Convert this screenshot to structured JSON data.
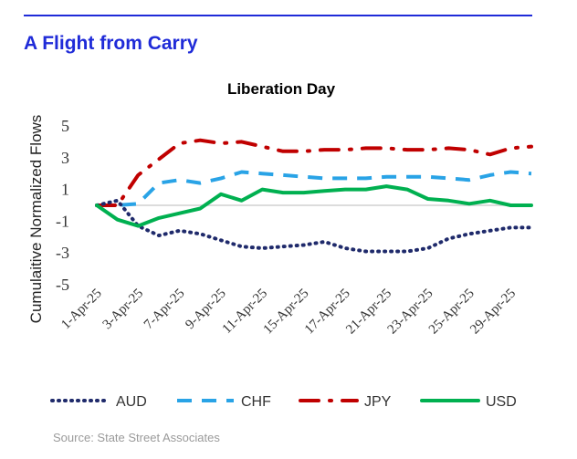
{
  "header": {
    "title": "A Flight from Carry",
    "accent_color": "#1f2bd8"
  },
  "footer": {
    "source": "Source: State Street Associates"
  },
  "chart_data": {
    "type": "line",
    "title": "Liberation Day",
    "ylabel": "Cumulaitive Normalized Flows",
    "xlabel": "",
    "ylim": [
      -5,
      5
    ],
    "yticks": [
      "5",
      "3",
      "1",
      "-1",
      "-3",
      "-5"
    ],
    "ytick_values": [
      5,
      3,
      1,
      -1,
      -3,
      -5
    ],
    "x": [
      "1-Apr-25",
      "2-Apr-25",
      "3-Apr-25",
      "4-Apr-25",
      "7-Apr-25",
      "8-Apr-25",
      "9-Apr-25",
      "10-Apr-25",
      "11-Apr-25",
      "14-Apr-25",
      "15-Apr-25",
      "16-Apr-25",
      "17-Apr-25",
      "18-Apr-25",
      "21-Apr-25",
      "22-Apr-25",
      "23-Apr-25",
      "24-Apr-25",
      "25-Apr-25",
      "28-Apr-25",
      "29-Apr-25",
      "30-Apr-25"
    ],
    "xtick_labels": [
      "1-Apr-25",
      "3-Apr-25",
      "7-Apr-25",
      "9-Apr-25",
      "11-Apr-25",
      "15-Apr-25",
      "17-Apr-25",
      "21-Apr-25",
      "23-Apr-25",
      "25-Apr-25",
      "29-Apr-25"
    ],
    "legend_position": "bottom",
    "grid": false,
    "series": [
      {
        "name": "AUD",
        "color": "#1f2a6b",
        "style": "dotted",
        "values": [
          0.0,
          0.3,
          -1.3,
          -1.9,
          -1.6,
          -1.8,
          -2.2,
          -2.6,
          -2.7,
          -2.6,
          -2.5,
          -2.3,
          -2.7,
          -2.9,
          -2.9,
          -2.9,
          -2.7,
          -2.1,
          -1.8,
          -1.6,
          -1.4,
          -1.4
        ]
      },
      {
        "name": "CHF",
        "color": "#29a3e6",
        "style": "dashed",
        "values": [
          0.0,
          0.0,
          0.1,
          1.4,
          1.6,
          1.4,
          1.7,
          2.1,
          2.0,
          1.9,
          1.8,
          1.7,
          1.7,
          1.7,
          1.8,
          1.8,
          1.8,
          1.7,
          1.6,
          1.9,
          2.1,
          2.0
        ]
      },
      {
        "name": "JPY",
        "color": "#c00000",
        "style": "dashdot",
        "values": [
          0.0,
          0.0,
          1.9,
          2.9,
          3.9,
          4.1,
          3.9,
          4.0,
          3.7,
          3.4,
          3.4,
          3.5,
          3.5,
          3.6,
          3.6,
          3.5,
          3.5,
          3.6,
          3.5,
          3.2,
          3.6,
          3.7
        ]
      },
      {
        "name": "USD",
        "color": "#00b050",
        "style": "solid",
        "values": [
          0.0,
          -0.9,
          -1.3,
          -0.8,
          -0.5,
          -0.2,
          0.7,
          0.3,
          1.0,
          0.8,
          0.8,
          0.9,
          1.0,
          1.0,
          1.2,
          1.0,
          0.4,
          0.3,
          0.1,
          0.3,
          0.0,
          0.0
        ]
      }
    ]
  }
}
